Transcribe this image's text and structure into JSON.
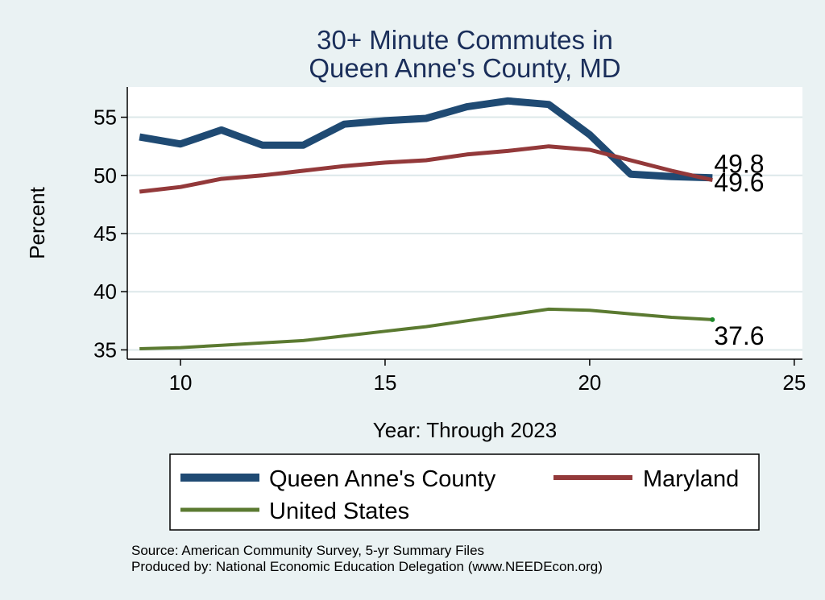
{
  "chart_data": {
    "type": "line",
    "title": [
      "30+ Minute Commutes in",
      "Queen Anne's County, MD"
    ],
    "xlabel": "Year: Through 2023",
    "ylabel": "Percent",
    "xlim": [
      8.7,
      25.2
    ],
    "ylim": [
      34.2,
      57.6
    ],
    "xticks": [
      10,
      15,
      20,
      25
    ],
    "yticks": [
      35,
      40,
      45,
      50,
      55
    ],
    "grid": true,
    "legend_position": "bottom",
    "x": [
      9,
      10,
      11,
      12,
      13,
      14,
      15,
      16,
      17,
      18,
      19,
      20,
      21,
      22,
      23
    ],
    "series": [
      {
        "name": "Queen Anne's County",
        "color": "#1f4a73",
        "values": [
          53.3,
          52.7,
          53.9,
          52.6,
          52.6,
          54.4,
          54.7,
          54.9,
          55.9,
          56.4,
          56.1,
          53.5,
          50.1,
          49.9,
          49.8
        ],
        "end_label": "49.8"
      },
      {
        "name": "Maryland",
        "color": "#93393a",
        "values": [
          48.6,
          49.0,
          49.7,
          50.0,
          50.4,
          50.8,
          51.1,
          51.3,
          51.8,
          52.1,
          52.5,
          52.2,
          51.3,
          50.4,
          49.6
        ],
        "end_label": "49.6"
      },
      {
        "name": "United States",
        "color": "#5b7a31",
        "values": [
          35.1,
          35.2,
          35.4,
          35.6,
          35.8,
          36.2,
          36.6,
          37.0,
          37.5,
          38.0,
          38.5,
          38.4,
          38.1,
          37.8,
          37.6
        ],
        "end_label": "37.6"
      }
    ],
    "notes": [
      "Source: American Community Survey, 5-yr Summary Files",
      "Produced by: National Economic Education Delegation (www.NEEDEcon.org)"
    ]
  }
}
